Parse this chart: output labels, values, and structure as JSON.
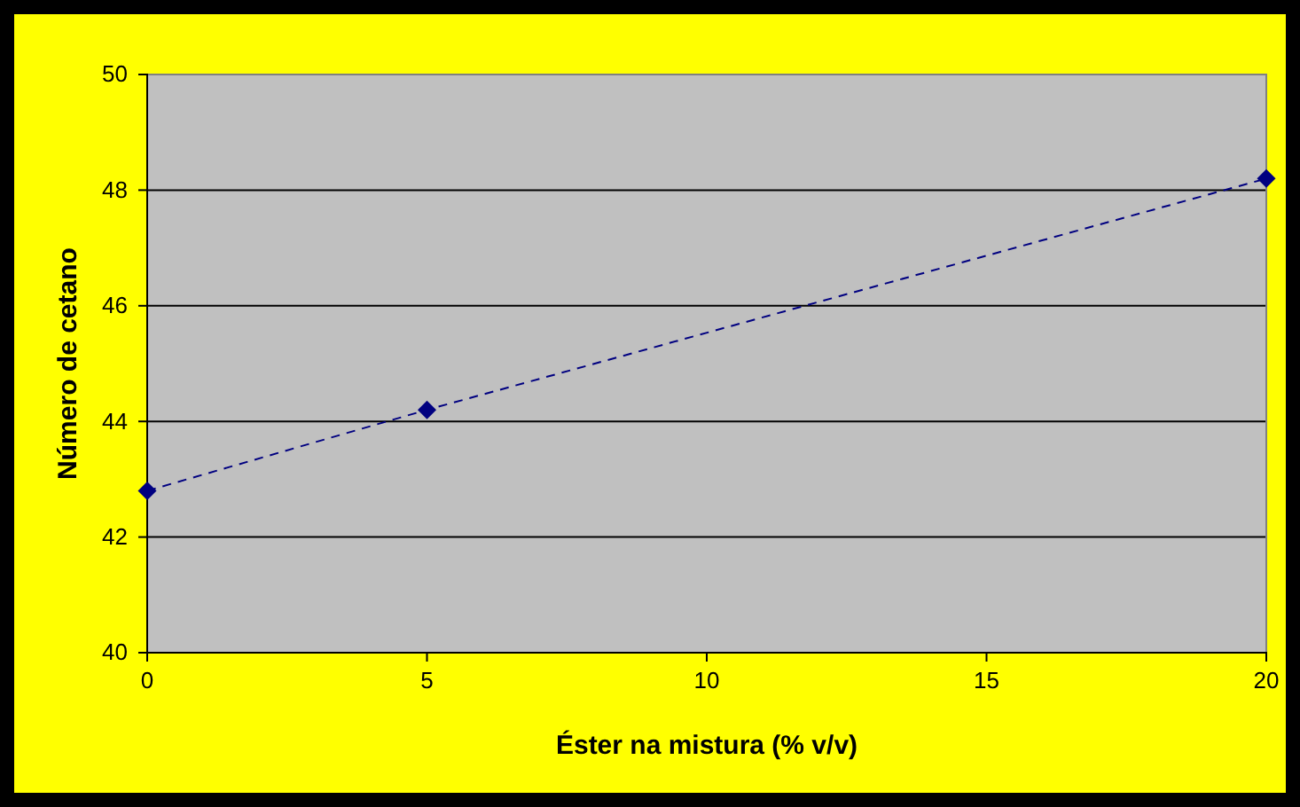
{
  "chart_data": {
    "type": "line",
    "xlabel": "Éster na mistura (% v/v)",
    "ylabel": "Número de cetano",
    "x": [
      0,
      5,
      20
    ],
    "series": [
      {
        "color": "#000080",
        "values": [
          42.8,
          44.2,
          48.2
        ]
      }
    ],
    "xlim": [
      0,
      20
    ],
    "xticks": [
      0,
      5,
      10,
      15,
      20
    ],
    "ylim": [
      40,
      50
    ],
    "yticks": [
      40,
      42,
      44,
      46,
      48,
      50
    ],
    "grid": "y",
    "marker": "diamond",
    "line_style": "dashed"
  }
}
